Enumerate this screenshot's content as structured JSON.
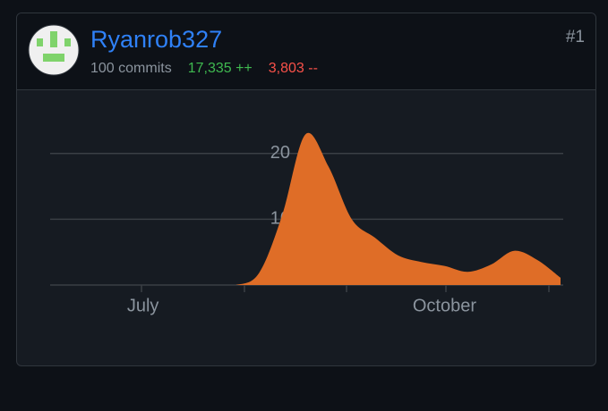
{
  "header": {
    "name": "Ryanrob327",
    "commits": "100 commits",
    "additions": "17,335 ++",
    "deletions": "3,803 --",
    "rank": "#1"
  },
  "chart_data": {
    "type": "area",
    "color": "#df6d27",
    "categories": [
      null,
      null,
      null,
      null,
      "July",
      null,
      null,
      null,
      null,
      null,
      null,
      null,
      null,
      null,
      null,
      null,
      null,
      "October",
      null,
      null,
      null,
      null,
      null
    ],
    "values": [
      0,
      0,
      0,
      0,
      0,
      0,
      0,
      0,
      0,
      1.8,
      10.6,
      22.9,
      18,
      10,
      7.2,
      4.5,
      3.5,
      2.9,
      2,
      3.1,
      5.2,
      3.8,
      1.1
    ],
    "ylim": [
      0,
      25
    ],
    "yticks": [
      10,
      20
    ],
    "grid": true
  }
}
